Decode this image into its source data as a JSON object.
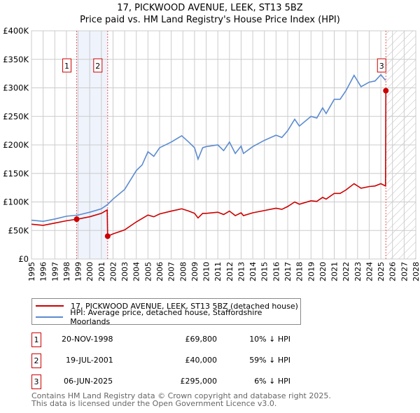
{
  "chart_data": {
    "type": "line",
    "title": "17, PICKWOOD AVENUE, LEEK, ST13 5BZ",
    "subtitle": "Price paid vs. HM Land Registry's House Price Index (HPI)",
    "xlim": [
      1995,
      2028
    ],
    "ylim": [
      0,
      400000
    ],
    "grid": true,
    "x_ticks": [
      "1995",
      "1996",
      "1997",
      "1998",
      "1999",
      "2000",
      "2001",
      "2002",
      "2003",
      "2004",
      "2005",
      "2006",
      "2007",
      "2008",
      "2009",
      "2010",
      "2011",
      "2012",
      "2013",
      "2014",
      "2015",
      "2016",
      "2017",
      "2018",
      "2019",
      "2020",
      "2021",
      "2022",
      "2023",
      "2024",
      "2025",
      "2026",
      "2027",
      "2028"
    ],
    "y_ticks": [
      {
        "v": 0,
        "label": "£0"
      },
      {
        "v": 50000,
        "label": "£50K"
      },
      {
        "v": 100000,
        "label": "£100K"
      },
      {
        "v": 150000,
        "label": "£150K"
      },
      {
        "v": 200000,
        "label": "£200K"
      },
      {
        "v": 250000,
        "label": "£250K"
      },
      {
        "v": 300000,
        "label": "£300K"
      },
      {
        "v": 350000,
        "label": "£350K"
      },
      {
        "v": 400000,
        "label": "£400K"
      }
    ],
    "series": [
      {
        "name": "17, PICKWOOD AVENUE, LEEK, ST13 5BZ (detached house)",
        "color": "#cc0000",
        "x": [
          1995,
          1996,
          1997,
          1998,
          1998.88,
          1999,
          2000,
          2001,
          2001.5,
          2001.54,
          2002,
          2003,
          2004,
          2005,
          2005.5,
          2006,
          2007,
          2007.9,
          2008.5,
          2009,
          2009.3,
          2009.7,
          2010,
          2011,
          2011.5,
          2012,
          2012.5,
          2013,
          2013.2,
          2014,
          2015,
          2016,
          2016.5,
          2017,
          2017.6,
          2018,
          2019,
          2019.5,
          2020,
          2020.3,
          2021,
          2021.5,
          2022,
          2022.7,
          2023.3,
          2024,
          2024.5,
          2025,
          2025.4,
          2025.43
        ],
        "y": [
          61000,
          59000,
          63000,
          67000,
          69800,
          70000,
          74000,
          80000,
          86000,
          40000,
          44000,
          51000,
          65000,
          77000,
          74000,
          79000,
          84000,
          88000,
          84000,
          80000,
          72000,
          80000,
          80000,
          82000,
          78000,
          84000,
          76000,
          81000,
          76000,
          81000,
          85000,
          89000,
          87000,
          92000,
          100000,
          96000,
          102000,
          101000,
          108000,
          105000,
          115000,
          115000,
          121000,
          132000,
          124000,
          127000,
          128000,
          132000,
          128000,
          295000
        ]
      },
      {
        "name": "HPI: Average price, detached house, Staffordshire Moorlands",
        "color": "#5b8bd0",
        "x": [
          1995,
          1996,
          1997,
          1998,
          1999,
          2000,
          2001,
          2001.5,
          2002,
          2003,
          2004,
          2004.5,
          2005,
          2005.5,
          2006,
          2007,
          2007.9,
          2008.5,
          2009,
          2009.3,
          2009.7,
          2010,
          2011,
          2011.5,
          2012,
          2012.5,
          2013,
          2013.2,
          2014,
          2015,
          2016,
          2016.5,
          2017,
          2017.6,
          2018,
          2019,
          2019.5,
          2020,
          2020.3,
          2021,
          2021.5,
          2022,
          2022.7,
          2023.3,
          2024,
          2024.5,
          2025,
          2025.4
        ],
        "y": [
          68000,
          66000,
          70000,
          75000,
          77000,
          82000,
          88000,
          95000,
          105000,
          122000,
          155000,
          165000,
          188000,
          180000,
          195000,
          205000,
          216000,
          205000,
          195000,
          175000,
          195000,
          197000,
          200000,
          190000,
          205000,
          185000,
          198000,
          185000,
          197000,
          208000,
          217000,
          213000,
          225000,
          245000,
          233000,
          250000,
          247000,
          265000,
          255000,
          280000,
          280000,
          295000,
          322000,
          302000,
          310000,
          312000,
          323000,
          313000
        ]
      }
    ],
    "sales": [
      {
        "num": "1",
        "x": 1998.88,
        "y": 69800,
        "date": "20-NOV-1998",
        "price": "£69,800",
        "hpi": "10% ↓ HPI"
      },
      {
        "num": "2",
        "x": 2001.54,
        "y": 40000,
        "date": "19-JUL-2001",
        "price": "£40,000",
        "hpi": "59% ↓ HPI"
      },
      {
        "num": "3",
        "x": 2025.43,
        "y": 295000,
        "date": "06-JUN-2025",
        "price": "£295,000",
        "hpi": "6% ↓ HPI"
      }
    ],
    "shaded_range": [
      1998.88,
      2001.54
    ],
    "forecast_hatch_from": 2025.43,
    "legend_position": "bottom"
  },
  "footer": {
    "line1": "Contains HM Land Registry data © Crown copyright and database right 2025.",
    "line2": "This data is licensed under the Open Government Licence v3.0."
  }
}
